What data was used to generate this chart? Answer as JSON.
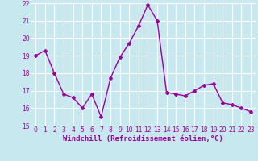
{
  "x": [
    0,
    1,
    2,
    3,
    4,
    5,
    6,
    7,
    8,
    9,
    10,
    11,
    12,
    13,
    14,
    15,
    16,
    17,
    18,
    19,
    20,
    21,
    22,
    23
  ],
  "y": [
    19.0,
    19.3,
    18.0,
    16.8,
    16.6,
    16.0,
    16.8,
    15.5,
    17.7,
    18.9,
    19.7,
    20.7,
    21.9,
    21.0,
    16.9,
    16.8,
    16.7,
    17.0,
    17.3,
    17.4,
    16.3,
    16.2,
    16.0,
    15.8
  ],
  "xlabel": "Windchill (Refroidissement éolien,°C)",
  "ylim": [
    15,
    22
  ],
  "xlim_min": -0.5,
  "xlim_max": 23.5,
  "yticks": [
    15,
    16,
    17,
    18,
    19,
    20,
    21,
    22
  ],
  "xticks": [
    0,
    1,
    2,
    3,
    4,
    5,
    6,
    7,
    8,
    9,
    10,
    11,
    12,
    13,
    14,
    15,
    16,
    17,
    18,
    19,
    20,
    21,
    22,
    23
  ],
  "line_color": "#990099",
  "bg_color": "#c8e8f0",
  "grid_color": "#b0d8e8",
  "marker": "D",
  "marker_size": 2.0,
  "line_width": 1.0,
  "tick_fontsize": 5.5,
  "xlabel_fontsize": 6.5
}
